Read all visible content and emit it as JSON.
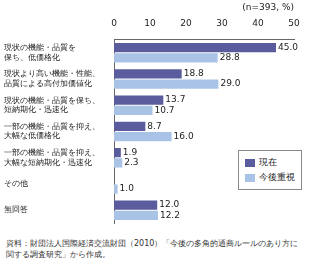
{
  "chart_data": {
    "type": "bar",
    "orientation": "horizontal",
    "subtitle": "(n=393, %)",
    "categories": [
      [
        "現状の機能・品質を",
        "保ち、低価格化"
      ],
      [
        "現状より高い機能・性能、",
        "品質による高付加価値化"
      ],
      [
        "現状の機能・品質を保ち、",
        "短納期化・迅速化"
      ],
      [
        "一部の機能・品質を抑え、",
        "大幅な低価格化"
      ],
      [
        "一部の機能・品質を抑え、",
        "大幅な短納期化・迅速化"
      ],
      [
        "その他"
      ],
      [
        "無回答"
      ]
    ],
    "series": [
      {
        "name": "現在",
        "color": "#5a5c9e",
        "values": [
          45.0,
          18.8,
          13.7,
          8.7,
          1.9,
          null,
          12.0
        ],
        "value_labels": [
          "45.0",
          "18.8",
          "13.7",
          "8.7",
          "1.9",
          null,
          "12.0"
        ]
      },
      {
        "name": "今後重視",
        "color": "#a9c3e6",
        "values": [
          28.8,
          29.0,
          10.7,
          16.0,
          2.3,
          1.0,
          12.2
        ],
        "value_labels": [
          "28.8",
          "29.0",
          "10.7",
          "16.0",
          "2.3",
          "1.0",
          "12.2"
        ]
      }
    ],
    "xlim": [
      0,
      50
    ],
    "xticks": [
      0,
      10,
      20,
      30,
      40,
      50
    ],
    "grid": false,
    "legend": "lower right",
    "data_labels": true,
    "note": "資料：財団法人国際経済交流財団（2010）「今後の多角的通商ルールのあり方に関する調査研究」から作成。"
  }
}
